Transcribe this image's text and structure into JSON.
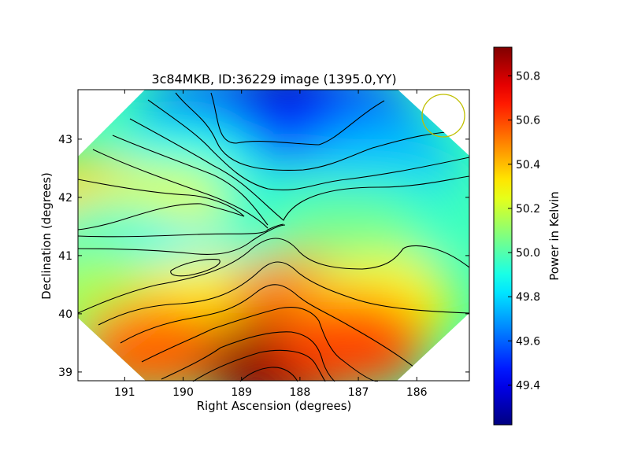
{
  "chart_data": {
    "type": "heatmap",
    "title": "3c84MKB, ID:36229 image (1395.0,YY)",
    "xlabel": "Right Ascension (degrees)",
    "ylabel": "Declination (degrees)",
    "xlim": [
      191.8,
      185.1
    ],
    "ylim": [
      38.85,
      43.85
    ],
    "x_ticks": [
      191,
      190,
      189,
      188,
      187,
      186
    ],
    "y_ticks": [
      39,
      40,
      41,
      42,
      43
    ],
    "colorbar": {
      "label": "Power in Kelvin",
      "range": [
        49.22,
        50.93
      ],
      "ticks": [
        49.4,
        49.6,
        49.8,
        50.0,
        50.2,
        50.4,
        50.6,
        50.8
      ],
      "colormap": "jet"
    },
    "field_shape": "hexagon",
    "beam_marker": {
      "shape": "circle",
      "color": "#bfbf00",
      "location": "top-right"
    },
    "field_samples": [
      {
        "ra": 188.2,
        "dec": 43.5,
        "value": 49.25
      },
      {
        "ra": 189.5,
        "dec": 43.3,
        "value": 49.45
      },
      {
        "ra": 187.2,
        "dec": 43.3,
        "value": 49.45
      },
      {
        "ra": 188.6,
        "dec": 42.4,
        "value": 49.6
      },
      {
        "ra": 186.6,
        "dec": 42.6,
        "value": 49.75
      },
      {
        "ra": 190.0,
        "dec": 42.6,
        "value": 49.9
      },
      {
        "ra": 191.6,
        "dec": 41.9,
        "value": 50.35
      },
      {
        "ra": 190.3,
        "dec": 41.7,
        "value": 50.25
      },
      {
        "ra": 188.1,
        "dec": 41.7,
        "value": 49.95
      },
      {
        "ra": 186.5,
        "dec": 41.6,
        "value": 49.95
      },
      {
        "ra": 191.3,
        "dec": 41.1,
        "value": 49.95
      },
      {
        "ra": 190.2,
        "dec": 40.8,
        "value": 49.85
      },
      {
        "ra": 187.2,
        "dec": 41.2,
        "value": 50.05
      },
      {
        "ra": 191.3,
        "dec": 40.3,
        "value": 50.15
      },
      {
        "ra": 189.6,
        "dec": 40.2,
        "value": 50.3
      },
      {
        "ra": 188.0,
        "dec": 40.2,
        "value": 50.5
      },
      {
        "ra": 186.6,
        "dec": 40.2,
        "value": 50.3
      },
      {
        "ra": 190.5,
        "dec": 39.4,
        "value": 50.55
      },
      {
        "ra": 188.4,
        "dec": 39.1,
        "value": 50.9
      },
      {
        "ra": 187.1,
        "dec": 39.5,
        "value": 50.6
      }
    ]
  }
}
